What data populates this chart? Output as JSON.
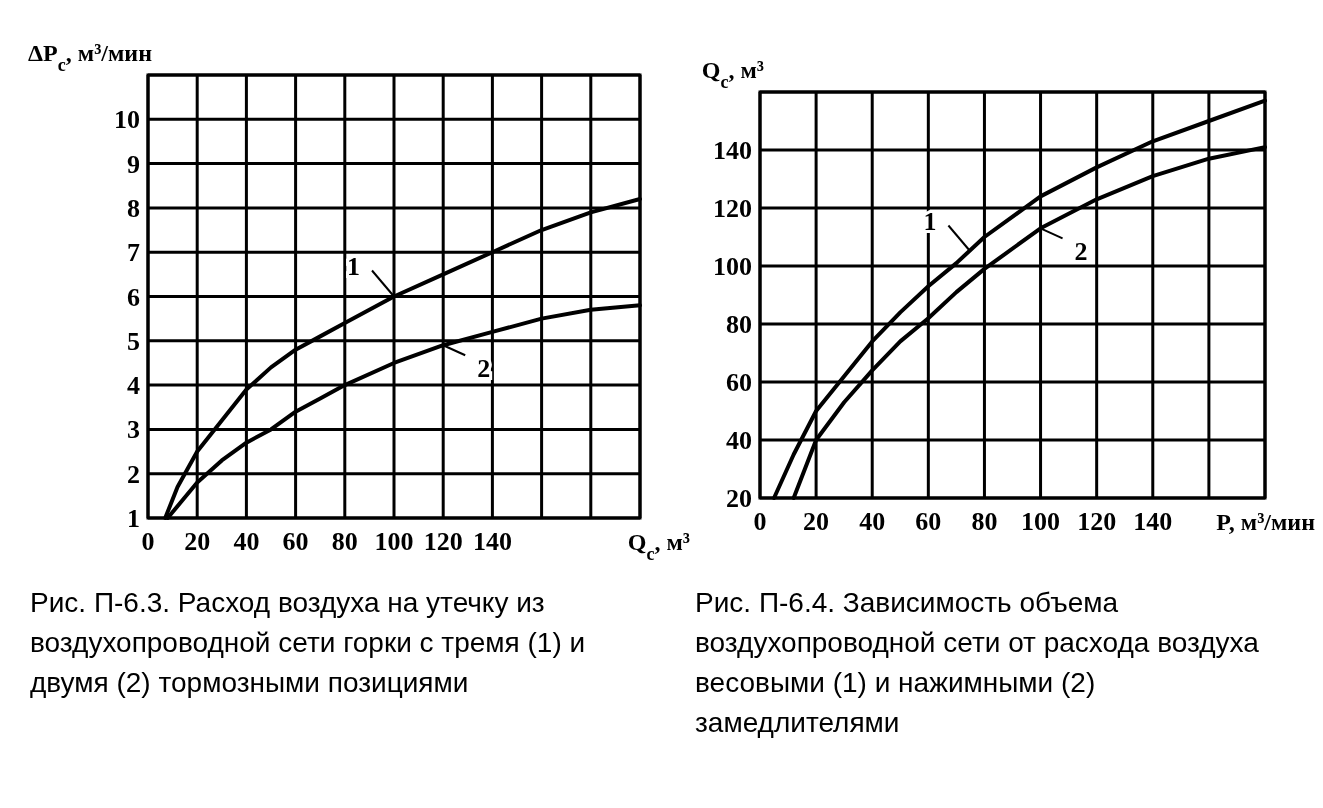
{
  "chart_data": [
    {
      "type": "line",
      "xlabel": "Q$_{с}$, м³",
      "ylabel": "ΔP$_{с}$, м³/мин",
      "xlim": [
        0,
        200
      ],
      "ylim": [
        1,
        11
      ],
      "xticks": [
        0,
        20,
        40,
        60,
        80,
        100,
        120,
        140,
        {
          "value": 160,
          "label": null
        },
        {
          "value": 180,
          "label": null
        },
        {
          "value": 200,
          "label": null
        }
      ],
      "yticks": [
        1,
        2,
        3,
        4,
        5,
        6,
        7,
        8,
        9,
        10,
        {
          "value": 11,
          "label": null
        }
      ],
      "grid": true,
      "marker": "none",
      "line_style": "solid",
      "series": [
        {
          "color": "#000000",
          "x": [
            7,
            12,
            20,
            30,
            40,
            50,
            60,
            70,
            80,
            100,
            120,
            140,
            160,
            180,
            200
          ],
          "values": [
            1,
            1.7,
            2.5,
            3.2,
            3.9,
            4.4,
            4.8,
            5.1,
            5.4,
            6,
            6.5,
            7,
            7.5,
            7.9,
            8.2
          ]
        },
        {
          "color": "#000000",
          "x": [
            8,
            14,
            20,
            30,
            40,
            50,
            60,
            70,
            80,
            100,
            120,
            140,
            160,
            180,
            200
          ],
          "values": [
            1,
            1.4,
            1.8,
            2.3,
            2.7,
            3.0,
            3.4,
            3.7,
            4.0,
            4.5,
            4.9,
            5.2,
            5.5,
            5.7,
            5.8
          ]
        }
      ],
      "annotations": [
        {
          "text": "1",
          "x": 100,
          "y": 6
        },
        {
          "text": "2",
          "x": 120,
          "y": 4.9
        },
        "Рис. П-6.3. Расход воздуха на утечку из воздухопроводной сети горки с тремя (1) и двумя (2) тормозными позициями"
      ]
    },
    {
      "type": "line",
      "xlabel": "P, м³/мин",
      "ylabel": "Q$_{с}$, м³",
      "xlim": [
        0,
        180
      ],
      "ylim": [
        20,
        160
      ],
      "xticks": [
        0,
        20,
        40,
        60,
        80,
        100,
        120,
        140,
        {
          "value": 160,
          "label": null
        },
        {
          "value": 180,
          "label": null
        }
      ],
      "yticks": [
        20,
        40,
        60,
        80,
        100,
        120,
        140,
        {
          "value": 160,
          "label": null
        }
      ],
      "grid": true,
      "marker": "none",
      "line_style": "solid",
      "series": [
        {
          "color": "#000000",
          "x": [
            5,
            12,
            20,
            30,
            40,
            50,
            60,
            70,
            80,
            100,
            120,
            140,
            160,
            180
          ],
          "values": [
            20,
            35,
            50,
            62,
            74,
            84,
            93,
            101,
            110,
            124,
            134,
            143,
            150,
            157
          ]
        },
        {
          "color": "#000000",
          "x": [
            12,
            16,
            20,
            30,
            40,
            50,
            60,
            70,
            80,
            100,
            120,
            140,
            160,
            180
          ],
          "values": [
            20,
            30,
            40,
            53,
            64,
            74,
            82,
            91,
            99,
            113,
            123,
            131,
            137,
            141
          ]
        }
      ],
      "annotations": [
        {
          "text": "1",
          "x": 75,
          "y": 105
        },
        {
          "text": "2",
          "x": 100,
          "y": 113
        },
        "Рис. П-6.4. Зависимость объема воздухопроводной сети от расхода воздуха весовыми (1) и нажимными (2) замедлителями"
      ]
    }
  ]
}
